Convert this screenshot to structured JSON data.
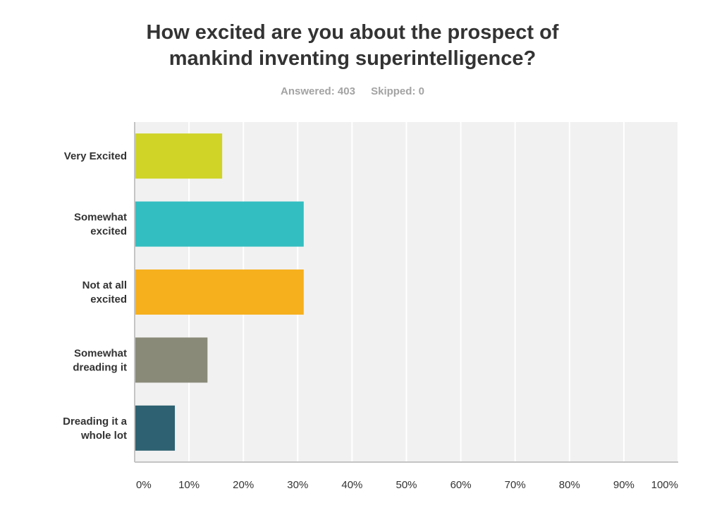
{
  "chart_data": {
    "type": "bar",
    "orientation": "horizontal",
    "title_lines": [
      "How excited are you about the prospect of",
      "mankind inventing superintelligence?"
    ],
    "stats": {
      "answered": "Answered: 403",
      "skipped": "Skipped: 0"
    },
    "categories": [
      [
        "Very Excited"
      ],
      [
        "Somewhat",
        "excited"
      ],
      [
        "Not at all",
        "excited"
      ],
      [
        "Somewhat",
        "dreading it"
      ],
      [
        "Dreading it a",
        "whole lot"
      ]
    ],
    "values": [
      16.1,
      31.1,
      31.1,
      13.4,
      7.4
    ],
    "colors": [
      "#cfd427",
      "#33bec1",
      "#f6b01e",
      "#8a8a79",
      "#2e6171"
    ],
    "xlim": [
      0,
      100
    ],
    "xticks": [
      "0%",
      "10%",
      "20%",
      "30%",
      "40%",
      "50%",
      "60%",
      "70%",
      "80%",
      "90%",
      "100%"
    ],
    "grid": true,
    "plot_background": "#f1f1f1",
    "grid_color": "#ffffff"
  }
}
